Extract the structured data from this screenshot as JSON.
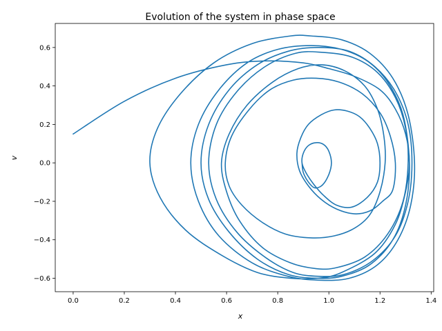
{
  "chart_data": {
    "type": "line",
    "title": "Evolution of the system in phase space",
    "xlabel": "x",
    "ylabel": "v",
    "xlim": [
      -0.07,
      1.41
    ],
    "ylim": [
      -0.67,
      0.725
    ],
    "xticks": [
      0.0,
      0.2,
      0.4,
      0.6,
      0.8,
      1.0,
      1.2,
      1.4
    ],
    "yticks": [
      -0.6,
      -0.4,
      -0.2,
      0.0,
      0.2,
      0.4,
      0.6
    ],
    "xtick_labels": [
      "0.0",
      "0.2",
      "0.4",
      "0.6",
      "0.8",
      "1.0",
      "1.2",
      "1.4"
    ],
    "ytick_labels": [
      "−0.6",
      "−0.4",
      "−0.2",
      "0.0",
      "0.2",
      "0.4",
      "0.6"
    ],
    "grid": false,
    "color": "#1f77b4",
    "series": [
      {
        "points": [
          [
            0.0,
            0.15
          ],
          [
            0.2,
            0.32
          ],
          [
            0.4,
            0.44
          ],
          [
            0.6,
            0.51
          ],
          [
            0.75,
            0.53
          ],
          [
            0.9,
            0.52
          ],
          [
            1.0,
            0.49
          ],
          [
            1.1,
            0.45
          ],
          [
            1.2,
            0.38
          ],
          [
            1.26,
            0.28
          ],
          [
            1.3,
            0.15
          ],
          [
            1.315,
            0.0
          ],
          [
            1.3,
            -0.15
          ],
          [
            1.26,
            -0.32
          ],
          [
            1.18,
            -0.47
          ],
          [
            1.05,
            -0.57
          ],
          [
            0.96,
            -0.6
          ],
          [
            0.85,
            -0.6
          ],
          [
            0.72,
            -0.57
          ],
          [
            0.58,
            -0.48
          ],
          [
            0.44,
            -0.35
          ],
          [
            0.34,
            -0.18
          ],
          [
            0.3,
            0.0
          ],
          [
            0.33,
            0.18
          ],
          [
            0.42,
            0.36
          ],
          [
            0.55,
            0.52
          ],
          [
            0.7,
            0.62
          ],
          [
            0.85,
            0.66
          ],
          [
            0.93,
            0.66
          ],
          [
            1.05,
            0.64
          ],
          [
            1.16,
            0.57
          ],
          [
            1.25,
            0.44
          ],
          [
            1.31,
            0.25
          ],
          [
            1.335,
            0.0
          ],
          [
            1.32,
            -0.22
          ],
          [
            1.27,
            -0.4
          ],
          [
            1.19,
            -0.53
          ],
          [
            1.08,
            -0.6
          ],
          [
            0.96,
            -0.61
          ],
          [
            0.84,
            -0.59
          ],
          [
            0.7,
            -0.52
          ],
          [
            0.57,
            -0.38
          ],
          [
            0.49,
            -0.2
          ],
          [
            0.46,
            0.0
          ],
          [
            0.49,
            0.2
          ],
          [
            0.57,
            0.38
          ],
          [
            0.68,
            0.52
          ],
          [
            0.8,
            0.59
          ],
          [
            0.93,
            0.61
          ],
          [
            1.05,
            0.59
          ],
          [
            1.15,
            0.53
          ],
          [
            1.23,
            0.42
          ],
          [
            1.29,
            0.25
          ],
          [
            1.315,
            0.0
          ],
          [
            1.3,
            -0.22
          ],
          [
            1.25,
            -0.4
          ],
          [
            1.16,
            -0.53
          ],
          [
            1.05,
            -0.59
          ],
          [
            0.95,
            -0.6
          ],
          [
            0.84,
            -0.58
          ],
          [
            0.72,
            -0.5
          ],
          [
            0.61,
            -0.36
          ],
          [
            0.53,
            -0.19
          ],
          [
            0.5,
            0.0
          ],
          [
            0.53,
            0.2
          ],
          [
            0.61,
            0.38
          ],
          [
            0.72,
            0.51
          ],
          [
            0.84,
            0.58
          ],
          [
            0.96,
            0.6
          ],
          [
            1.08,
            0.58
          ],
          [
            1.18,
            0.5
          ],
          [
            1.26,
            0.37
          ],
          [
            1.31,
            0.2
          ],
          [
            1.325,
            0.0
          ],
          [
            1.31,
            -0.2
          ],
          [
            1.26,
            -0.38
          ],
          [
            1.17,
            -0.51
          ],
          [
            1.06,
            -0.58
          ],
          [
            0.96,
            -0.59
          ],
          [
            0.86,
            -0.57
          ],
          [
            0.75,
            -0.49
          ],
          [
            0.64,
            -0.36
          ],
          [
            0.56,
            -0.19
          ],
          [
            0.53,
            0.0
          ],
          [
            0.56,
            0.2
          ],
          [
            0.64,
            0.37
          ],
          [
            0.75,
            0.5
          ],
          [
            0.87,
            0.57
          ],
          [
            0.97,
            0.575
          ],
          [
            1.09,
            0.55
          ],
          [
            1.19,
            0.47
          ],
          [
            1.26,
            0.34
          ],
          [
            1.3,
            0.18
          ],
          [
            1.31,
            0.0
          ],
          [
            1.29,
            -0.2
          ],
          [
            1.23,
            -0.37
          ],
          [
            1.14,
            -0.49
          ],
          [
            1.03,
            -0.545
          ],
          [
            0.95,
            -0.55
          ],
          [
            0.85,
            -0.52
          ],
          [
            0.74,
            -0.44
          ],
          [
            0.65,
            -0.3
          ],
          [
            0.6,
            -0.15
          ],
          [
            0.58,
            0.0
          ],
          [
            0.61,
            0.15
          ],
          [
            0.68,
            0.3
          ],
          [
            0.78,
            0.42
          ],
          [
            0.88,
            0.49
          ],
          [
            0.97,
            0.51
          ],
          [
            1.06,
            0.48
          ],
          [
            1.14,
            0.4
          ],
          [
            1.19,
            0.28
          ],
          [
            1.215,
            0.14
          ],
          [
            1.22,
            0.0
          ],
          [
            1.2,
            -0.15
          ],
          [
            1.16,
            -0.27
          ],
          [
            1.1,
            -0.34
          ],
          [
            1.02,
            -0.38
          ],
          [
            0.93,
            -0.39
          ],
          [
            0.83,
            -0.37
          ],
          [
            0.74,
            -0.31
          ],
          [
            0.66,
            -0.22
          ],
          [
            0.61,
            -0.12
          ],
          [
            0.595,
            0.0
          ],
          [
            0.62,
            0.14
          ],
          [
            0.69,
            0.28
          ],
          [
            0.77,
            0.38
          ],
          [
            0.86,
            0.43
          ],
          [
            0.95,
            0.44
          ],
          [
            1.04,
            0.42
          ],
          [
            1.13,
            0.36
          ],
          [
            1.2,
            0.26
          ],
          [
            1.24,
            0.14
          ],
          [
            1.26,
            0.0
          ],
          [
            1.25,
            -0.14
          ],
          [
            1.21,
            -0.2
          ],
          [
            1.16,
            -0.25
          ],
          [
            1.1,
            -0.265
          ],
          [
            1.03,
            -0.24
          ],
          [
            0.97,
            -0.19
          ],
          [
            0.92,
            -0.12
          ],
          [
            0.885,
            -0.04
          ],
          [
            0.875,
            0.05
          ],
          [
            0.89,
            0.13
          ],
          [
            0.92,
            0.2
          ],
          [
            0.97,
            0.25
          ],
          [
            1.02,
            0.275
          ],
          [
            1.07,
            0.27
          ],
          [
            1.12,
            0.24
          ],
          [
            1.16,
            0.18
          ],
          [
            1.19,
            0.1
          ],
          [
            1.2,
            0.0
          ],
          [
            1.19,
            -0.1
          ],
          [
            1.15,
            -0.18
          ],
          [
            1.09,
            -0.23
          ],
          [
            1.03,
            -0.22
          ],
          [
            0.98,
            -0.17
          ],
          [
            0.94,
            -0.11
          ],
          [
            0.91,
            -0.05
          ],
          [
            0.895,
            0.0
          ],
          [
            0.9,
            0.05
          ],
          [
            0.92,
            0.09
          ],
          [
            0.95,
            0.105
          ],
          [
            0.98,
            0.095
          ],
          [
            1.0,
            0.06
          ],
          [
            1.01,
            0.0
          ],
          [
            1.0,
            -0.06
          ],
          [
            0.975,
            -0.115
          ],
          [
            0.945,
            -0.13
          ],
          [
            0.92,
            -0.1
          ],
          [
            0.9,
            -0.05
          ],
          [
            0.895,
            0.0
          ]
        ]
      }
    ]
  }
}
